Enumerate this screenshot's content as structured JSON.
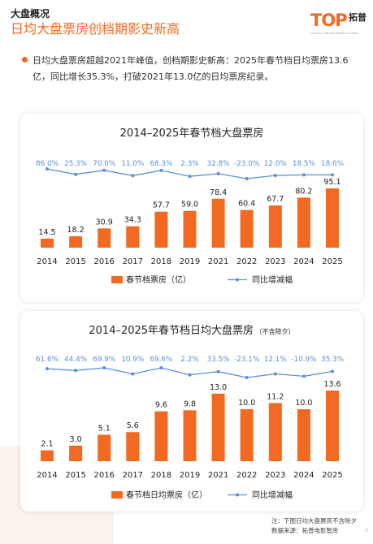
{
  "header": {
    "section": "大盘概况",
    "title": "日均大盘票房创档期影史新高"
  },
  "logo": {
    "mark": "TOP",
    "sub": "CONSULT & ENTERTAINMENT CHANNEL",
    "cn": "拓普"
  },
  "summary": "日均大盘票房超越2021年峰值，创档期影史新高：2025年春节档日均票房13.6亿，同比增长35.3%，打破2021年13.0亿的日均票房纪录。",
  "footnote": {
    "note": "注：下图日均大盘票房不含除夕",
    "source": "数据来源：拓普电影智库"
  },
  "page_number": "5",
  "colors": {
    "accent": "#f26a21",
    "bar": "#f26a21",
    "line": "#5b8fd6"
  },
  "chart_data": [
    {
      "type": "bar",
      "title": "2014–2025年春节档大盘票房",
      "title_note": "",
      "categories": [
        "2014",
        "2015",
        "2016",
        "2017",
        "2018",
        "2019",
        "2021",
        "2022",
        "2023",
        "2024",
        "2025"
      ],
      "series": [
        {
          "name": "春节档票房（亿）",
          "type": "bar",
          "values": [
            14.5,
            18.2,
            30.9,
            34.3,
            57.7,
            59.0,
            78.4,
            60.4,
            67.7,
            80.2,
            95.1
          ]
        },
        {
          "name": "同比增减幅",
          "type": "line",
          "values": [
            86.0,
            25.3,
            70.0,
            11.0,
            68.3,
            2.3,
            32.8,
            -23.0,
            12.0,
            18.5,
            18.6
          ]
        }
      ],
      "legend": "bottom-center",
      "grid": false
    },
    {
      "type": "bar",
      "title": "2014–2025年春节档日均大盘票房",
      "title_note": "（不含除夕）",
      "categories": [
        "2014",
        "2015",
        "2016",
        "2017",
        "2018",
        "2019",
        "2021",
        "2022",
        "2023",
        "2024",
        "2025"
      ],
      "series": [
        {
          "name": "春节档日均票房（亿）",
          "type": "bar",
          "values": [
            2.1,
            3.0,
            5.1,
            5.6,
            9.6,
            9.8,
            13.0,
            10.0,
            11.2,
            10.0,
            13.6
          ]
        },
        {
          "name": "同比增减幅",
          "type": "line",
          "values": [
            61.6,
            44.4,
            69.9,
            10.9,
            69.6,
            2.2,
            33.5,
            -23.1,
            12.1,
            -10.9,
            35.3
          ]
        }
      ],
      "legend": "bottom-center",
      "grid": false
    }
  ]
}
